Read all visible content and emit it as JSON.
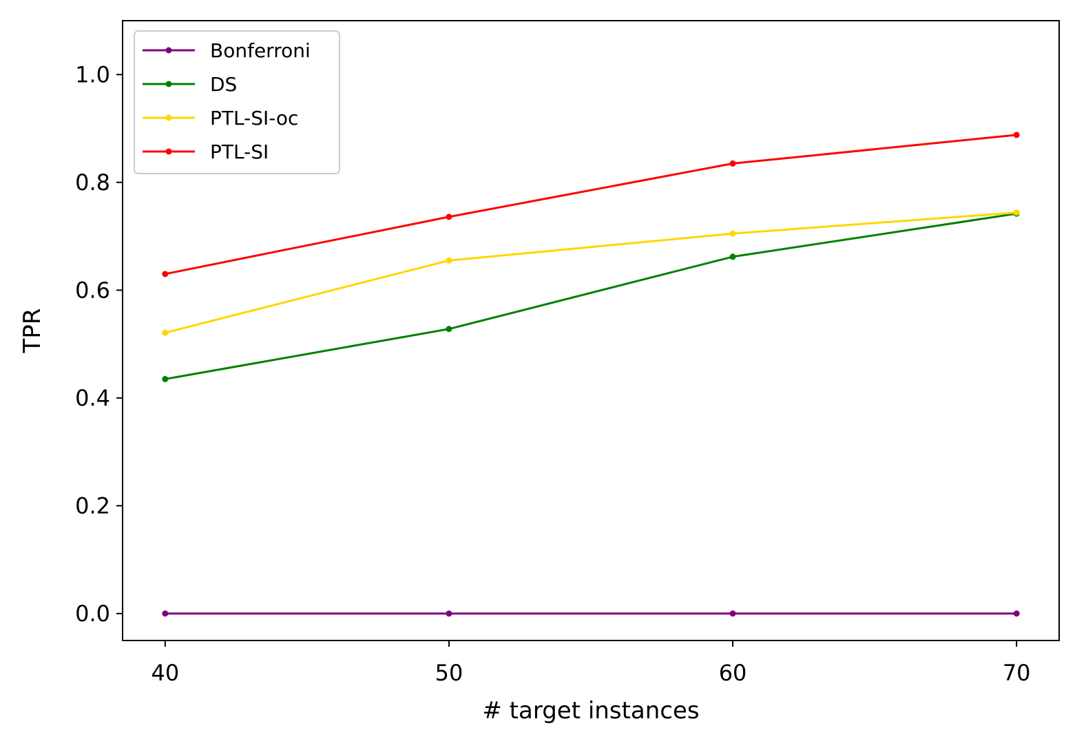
{
  "chart_data": {
    "type": "line",
    "xlabel": "# target instances",
    "ylabel": "TPR",
    "x": [
      40,
      50,
      60,
      70
    ],
    "xticks": [
      "40",
      "50",
      "60",
      "70"
    ],
    "yticks": [
      "0.0",
      "0.2",
      "0.4",
      "0.6",
      "0.8",
      "1.0"
    ],
    "xlim": [
      38.5,
      71.5
    ],
    "ylim": [
      -0.05,
      1.1
    ],
    "legend_position": "top-left",
    "series": [
      {
        "name": "Bonferroni",
        "color": "#800080",
        "values": [
          0.0,
          0.0,
          0.0,
          0.0
        ]
      },
      {
        "name": "DS",
        "color": "#008000",
        "values": [
          0.435,
          0.528,
          0.662,
          0.742
        ]
      },
      {
        "name": "PTL-SI-oc",
        "color": "#FFD700",
        "values": [
          0.521,
          0.655,
          0.705,
          0.744
        ]
      },
      {
        "name": "PTL-SI",
        "color": "#FF0000",
        "values": [
          0.63,
          0.736,
          0.835,
          0.888
        ]
      }
    ]
  }
}
